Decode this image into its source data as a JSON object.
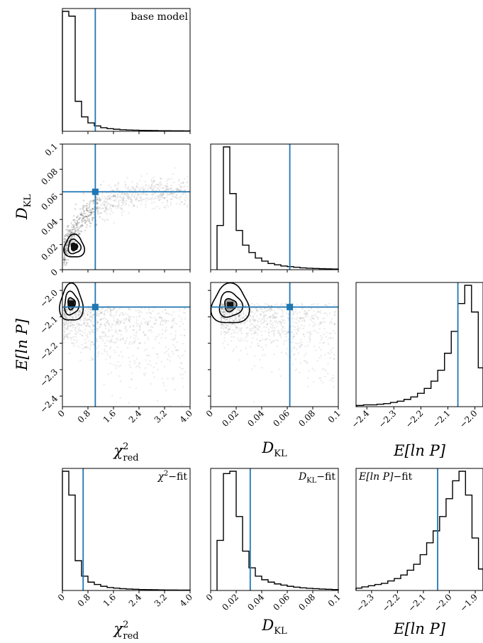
{
  "colors": {
    "marker": "#1f77b4",
    "hist": "#000000",
    "scatter": "#b4b4b4"
  },
  "chart_data": [
    {
      "type": "corner",
      "label": "base model",
      "variables": [
        {
          "key": "chi2",
          "label": "χ",
          "label_sup": "2",
          "label_sub": "red",
          "range": [
            0,
            4.0
          ],
          "ticks": [
            "0",
            "0.8",
            "1.6",
            "2.4",
            "3.2",
            "4.0"
          ],
          "tick_values": [
            0,
            0.8,
            1.6,
            2.4,
            3.2,
            4.0
          ]
        },
        {
          "key": "dkl",
          "label": "D",
          "label_sub": "KL",
          "range": [
            0,
            0.1
          ],
          "ticks": [
            "0",
            "0.02",
            "0.04",
            "0.06",
            "0.08",
            "0.1"
          ],
          "tick_values": [
            0,
            0.02,
            0.04,
            0.06,
            0.08,
            0.1
          ]
        },
        {
          "key": "elnp",
          "label": "E[ln P]",
          "range": [
            -2.44,
            -1.97
          ],
          "ticks": [
            "−2.4",
            "−2.3",
            "−2.2",
            "−2.1",
            "−2.0"
          ],
          "tick_values": [
            -2.4,
            -2.3,
            -2.2,
            -2.1,
            -2.0
          ]
        }
      ],
      "markers": {
        "chi2": 1.03,
        "dkl": 0.062,
        "elnp": -2.063
      },
      "histograms": {
        "chi2": {
          "bins": [
            0.1,
            0.3,
            0.5,
            0.7,
            0.9,
            1.1,
            1.3,
            1.5,
            1.7,
            1.9,
            2.1,
            2.3,
            2.5,
            2.7,
            2.9,
            3.1,
            3.3,
            3.5,
            3.7,
            3.9
          ],
          "counts": [
            1.0,
            0.96,
            0.25,
            0.12,
            0.07,
            0.045,
            0.03,
            0.022,
            0.017,
            0.013,
            0.011,
            0.009,
            0.008,
            0.007,
            0.006,
            0.005,
            0.005,
            0.004,
            0.004,
            0.003
          ]
        },
        "dkl": {
          "bins": [
            0.0075,
            0.0125,
            0.0175,
            0.0225,
            0.0275,
            0.0325,
            0.0375,
            0.0425,
            0.0475,
            0.0525,
            0.0575,
            0.0625,
            0.0675,
            0.0725,
            0.0775,
            0.0825,
            0.0875,
            0.0925,
            0.0975
          ],
          "counts": [
            0.36,
            1.0,
            0.62,
            0.32,
            0.2,
            0.14,
            0.095,
            0.07,
            0.05,
            0.04,
            0.03,
            0.025,
            0.02,
            0.015,
            0.012,
            0.01,
            0.008,
            0.007,
            0.005
          ]
        },
        "elnp": {
          "bins": [
            -2.425,
            -2.4,
            -2.375,
            -2.35,
            -2.325,
            -2.3,
            -2.275,
            -2.25,
            -2.225,
            -2.2,
            -2.175,
            -2.15,
            -2.125,
            -2.1,
            -2.075,
            -2.05,
            -2.025,
            -2.0,
            -1.975
          ],
          "counts": [
            0.01,
            0.015,
            0.015,
            0.02,
            0.025,
            0.035,
            0.045,
            0.06,
            0.08,
            0.11,
            0.15,
            0.21,
            0.3,
            0.44,
            0.62,
            0.85,
            1.0,
            0.78,
            0.32
          ]
        }
      },
      "contours": {
        "dkl_vs_chi2": {
          "center": [
            0.28,
            0.016
          ]
        },
        "elnp_vs_chi2": {
          "center": [
            0.28,
            -2.05
          ]
        },
        "elnp_vs_dkl": {
          "center": [
            0.012,
            -2.05
          ]
        }
      }
    },
    {
      "type": "histogram",
      "label": "χ²−fit",
      "label_main": "χ",
      "label_sup": "2",
      "label_tail": "−fit",
      "x_label": "χ",
      "x_label_sup": "2",
      "x_label_sub": "red",
      "range": [
        0,
        4.0
      ],
      "ticks": [
        "0",
        "0.8",
        "1.6",
        "2.4",
        "3.2",
        "4.0"
      ],
      "tick_values": [
        0,
        0.8,
        1.6,
        2.4,
        3.2,
        4.0
      ],
      "marker": 0.65,
      "bins": [
        0.1,
        0.3,
        0.5,
        0.7,
        0.9,
        1.1,
        1.3,
        1.5,
        1.7,
        1.9,
        2.1,
        2.3,
        2.5,
        2.7,
        2.9,
        3.1,
        3.3,
        3.5,
        3.7,
        3.9
      ],
      "counts": [
        1.0,
        0.8,
        0.25,
        0.12,
        0.07,
        0.05,
        0.035,
        0.025,
        0.02,
        0.015,
        0.012,
        0.01,
        0.008,
        0.007,
        0.006,
        0.005,
        0.004,
        0.004,
        0.003,
        0.003
      ]
    },
    {
      "type": "histogram",
      "label": "DKL−fit",
      "label_main": "D",
      "label_sub": "KL",
      "label_tail": "−fit",
      "x_label": "D",
      "x_label_sub": "KL",
      "range": [
        0,
        0.1
      ],
      "ticks": [
        "0",
        "0.02",
        "0.04",
        "0.06",
        "0.08",
        "0.1"
      ],
      "tick_values": [
        0,
        0.02,
        0.04,
        0.06,
        0.08,
        0.1
      ],
      "marker": 0.031,
      "bins": [
        0.0075,
        0.0125,
        0.0175,
        0.0225,
        0.0275,
        0.0325,
        0.0375,
        0.0425,
        0.0475,
        0.0525,
        0.0575,
        0.0625,
        0.0675,
        0.0725,
        0.0775,
        0.0825,
        0.0875,
        0.0925,
        0.0975
      ],
      "counts": [
        0.42,
        0.98,
        1.0,
        0.62,
        0.33,
        0.19,
        0.12,
        0.09,
        0.07,
        0.055,
        0.045,
        0.035,
        0.028,
        0.022,
        0.018,
        0.015,
        0.012,
        0.01,
        0.008
      ]
    },
    {
      "type": "histogram",
      "label": "E[ln P]−fit",
      "label_main": "E[ln P]",
      "label_tail": "−fit",
      "x_label": "E[ln P]",
      "range": [
        -2.36,
        -1.87
      ],
      "ticks": [
        "−2.3",
        "−2.2",
        "−2.1",
        "−2.0",
        "−1.9"
      ],
      "tick_values": [
        -2.3,
        -2.2,
        -2.1,
        -2.0,
        -1.9
      ],
      "marker": -2.045,
      "bins": [
        -2.35,
        -2.325,
        -2.3,
        -2.275,
        -2.25,
        -2.225,
        -2.2,
        -2.175,
        -2.15,
        -2.125,
        -2.1,
        -2.075,
        -2.05,
        -2.025,
        -2.0,
        -1.975,
        -1.95,
        -1.925,
        -1.9,
        -1.875
      ],
      "counts": [
        0.02,
        0.03,
        0.04,
        0.05,
        0.06,
        0.08,
        0.1,
        0.13,
        0.17,
        0.22,
        0.3,
        0.4,
        0.5,
        0.62,
        0.77,
        0.92,
        1.0,
        0.8,
        0.44,
        0.18
      ]
    }
  ]
}
